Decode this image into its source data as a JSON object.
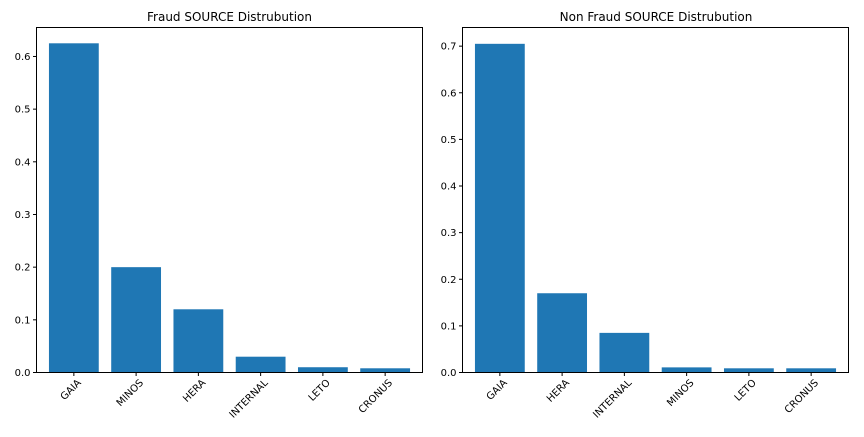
{
  "chart_data": [
    {
      "type": "bar",
      "title": "Fraud SOURCE Distrubution",
      "xlabel": "",
      "ylabel": "",
      "categories": [
        "GAIA",
        "MINOS",
        "HERA",
        "INTERNAL",
        "LETO",
        "CRONUS"
      ],
      "values": [
        0.625,
        0.2,
        0.12,
        0.03,
        0.01,
        0.008
      ],
      "ylim": [
        0,
        0.655
      ],
      "yticks": [
        0.0,
        0.1,
        0.2,
        0.3,
        0.4,
        0.5,
        0.6
      ],
      "ytick_labels": [
        "0.0",
        "0.1",
        "0.2",
        "0.3",
        "0.4",
        "0.5",
        "0.6"
      ],
      "grid": false,
      "bar_color": "#1f77b4"
    },
    {
      "type": "bar",
      "title": "Non Fraud SOURCE Distrubution",
      "xlabel": "",
      "ylabel": "",
      "categories": [
        "GAIA",
        "HERA",
        "INTERNAL",
        "MINOS",
        "LETO",
        "CRONUS"
      ],
      "values": [
        0.705,
        0.17,
        0.085,
        0.011,
        0.009,
        0.009
      ],
      "ylim": [
        0,
        0.74
      ],
      "yticks": [
        0.0,
        0.1,
        0.2,
        0.3,
        0.4,
        0.5,
        0.6,
        0.7
      ],
      "ytick_labels": [
        "0.0",
        "0.1",
        "0.2",
        "0.3",
        "0.4",
        "0.5",
        "0.6",
        "0.7"
      ],
      "grid": false,
      "bar_color": "#1f77b4"
    }
  ]
}
